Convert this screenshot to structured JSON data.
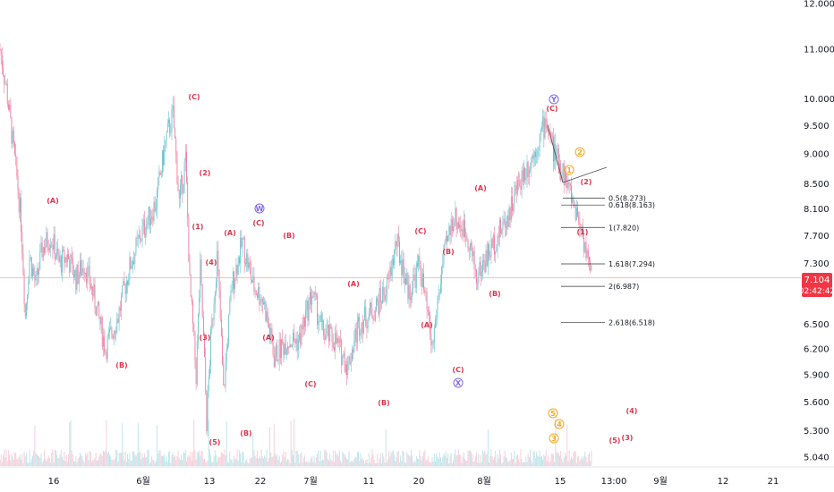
{
  "chart_data": {
    "type": "candlestick",
    "x_axis": {
      "labels": [
        "16",
        "6월",
        "13",
        "22",
        "7월",
        "11",
        "20",
        "8월",
        "15",
        "13:00",
        "9월",
        "12",
        "21"
      ]
    },
    "y_axis": {
      "ticks": [
        "12.000",
        "11.000",
        "10.000",
        "9.500",
        "9.000",
        "8.500",
        "8.100",
        "7.700",
        "7.300",
        "6.500",
        "6.200",
        "5.900",
        "5.600",
        "5.300",
        "5.040"
      ],
      "tick_values": [
        12.0,
        11.0,
        10.0,
        9.5,
        9.0,
        8.5,
        8.1,
        7.7,
        7.3,
        6.5,
        6.2,
        5.9,
        5.6,
        5.3,
        5.04
      ],
      "scale": "log"
    },
    "current_price": {
      "value": "7.104",
      "countdown": "02:42:42",
      "color": "#f23645"
    },
    "colors": {
      "up": "#6fc3cf",
      "down": "#f07fa0",
      "wave_red": "#e5334b",
      "wave_orange": "#f5a623",
      "wave_purple": "#7b68ee"
    },
    "price_series": [
      {
        "d": 0,
        "v": 11.0
      },
      {
        "d": 6,
        "v": 10.2
      },
      {
        "d": 12,
        "v": 9.2
      },
      {
        "d": 16,
        "v": 8.6
      },
      {
        "d": 20,
        "v": 7.9
      },
      {
        "d": 24,
        "v": 6.6
      },
      {
        "d": 28,
        "v": 7.4
      },
      {
        "d": 34,
        "v": 7.0
      },
      {
        "d": 40,
        "v": 7.5
      },
      {
        "d": 48,
        "v": 7.7
      },
      {
        "d": 56,
        "v": 7.3
      },
      {
        "d": 64,
        "v": 7.4
      },
      {
        "d": 72,
        "v": 7.1
      },
      {
        "d": 80,
        "v": 7.3
      },
      {
        "d": 90,
        "v": 6.8
      },
      {
        "d": 100,
        "v": 6.2
      },
      {
        "d": 112,
        "v": 6.6
      },
      {
        "d": 124,
        "v": 7.3
      },
      {
        "d": 136,
        "v": 7.8
      },
      {
        "d": 148,
        "v": 8.2
      },
      {
        "d": 158,
        "v": 9.3
      },
      {
        "d": 164,
        "v": 9.7
      },
      {
        "d": 170,
        "v": 8.2
      },
      {
        "d": 176,
        "v": 8.9
      },
      {
        "d": 180,
        "v": 7.0
      },
      {
        "d": 186,
        "v": 5.9
      },
      {
        "d": 190,
        "v": 7.2
      },
      {
        "d": 196,
        "v": 5.4
      },
      {
        "d": 200,
        "v": 6.3
      },
      {
        "d": 206,
        "v": 7.4
      },
      {
        "d": 212,
        "v": 5.7
      },
      {
        "d": 220,
        "v": 7.0
      },
      {
        "d": 230,
        "v": 7.6
      },
      {
        "d": 240,
        "v": 7.0
      },
      {
        "d": 250,
        "v": 6.8
      },
      {
        "d": 260,
        "v": 6.1
      },
      {
        "d": 272,
        "v": 6.3
      },
      {
        "d": 284,
        "v": 6.3
      },
      {
        "d": 296,
        "v": 6.9
      },
      {
        "d": 306,
        "v": 6.4
      },
      {
        "d": 318,
        "v": 6.3
      },
      {
        "d": 330,
        "v": 6.0
      },
      {
        "d": 340,
        "v": 6.5
      },
      {
        "d": 356,
        "v": 6.7
      },
      {
        "d": 368,
        "v": 7.0
      },
      {
        "d": 376,
        "v": 7.6
      },
      {
        "d": 388,
        "v": 6.9
      },
      {
        "d": 398,
        "v": 7.3
      },
      {
        "d": 410,
        "v": 6.2
      },
      {
        "d": 420,
        "v": 7.3
      },
      {
        "d": 430,
        "v": 8.0
      },
      {
        "d": 444,
        "v": 7.7
      },
      {
        "d": 452,
        "v": 7.1
      },
      {
        "d": 462,
        "v": 7.4
      },
      {
        "d": 472,
        "v": 7.7
      },
      {
        "d": 482,
        "v": 8.0
      },
      {
        "d": 494,
        "v": 8.6
      },
      {
        "d": 504,
        "v": 8.9
      },
      {
        "d": 512,
        "v": 9.3
      },
      {
        "d": 518,
        "v": 9.6
      },
      {
        "d": 526,
        "v": 9.0
      },
      {
        "d": 534,
        "v": 8.7
      },
      {
        "d": 540,
        "v": 8.4
      },
      {
        "d": 546,
        "v": 8.1
      },
      {
        "d": 552,
        "v": 7.8
      },
      {
        "d": 558,
        "v": 7.3
      },
      {
        "d": 561,
        "v": 7.104
      }
    ],
    "fib_levels": [
      {
        "ratio_label": "0.5(8.273)",
        "value": 8.273
      },
      {
        "ratio_label": "0.618(8.163)",
        "value": 8.163
      },
      {
        "ratio_label": "1(7.820)",
        "value": 7.82
      },
      {
        "ratio_label": "1.618(7.294)",
        "value": 7.294
      },
      {
        "ratio_label": "2(6.987)",
        "value": 6.987
      },
      {
        "ratio_label": "2.618(6.518)",
        "value": 6.518
      }
    ],
    "wave_labels": [
      {
        "text": "(A)",
        "color": "red"
      },
      {
        "text": "(B)",
        "color": "red"
      },
      {
        "text": "(C)",
        "color": "red"
      },
      {
        "text": "(2)",
        "color": "red"
      },
      {
        "text": "(1)",
        "color": "red"
      },
      {
        "text": "(4)",
        "color": "red"
      },
      {
        "text": "(3)",
        "color": "red"
      },
      {
        "text": "(5)",
        "color": "red"
      },
      {
        "text": "(A)",
        "color": "red"
      },
      {
        "text": "(B)",
        "color": "red"
      },
      {
        "text": "W",
        "color": "purple"
      },
      {
        "text": "(C)",
        "color": "red"
      },
      {
        "text": "(A)",
        "color": "red"
      },
      {
        "text": "(B)",
        "color": "red"
      },
      {
        "text": "(A)",
        "color": "red"
      },
      {
        "text": "(C)",
        "color": "red"
      },
      {
        "text": "(B)",
        "color": "red"
      },
      {
        "text": "(C)",
        "color": "red"
      },
      {
        "text": "(A)",
        "color": "red"
      },
      {
        "text": "(B)",
        "color": "red"
      },
      {
        "text": "(C)",
        "color": "red"
      },
      {
        "text": "X",
        "color": "purple"
      },
      {
        "text": "(A)",
        "color": "red"
      },
      {
        "text": "(B)",
        "color": "red"
      },
      {
        "text": "Y",
        "color": "purple"
      },
      {
        "text": "(C)",
        "color": "red"
      },
      {
        "text": "2",
        "color": "orange"
      },
      {
        "text": "1",
        "color": "orange"
      },
      {
        "text": "(2)",
        "color": "red"
      },
      {
        "text": "(1)",
        "color": "red"
      },
      {
        "text": "5",
        "color": "orange"
      },
      {
        "text": "4",
        "color": "orange"
      },
      {
        "text": "3",
        "color": "orange"
      },
      {
        "text": "(4)",
        "color": "red"
      },
      {
        "text": "(5)",
        "color": "red"
      },
      {
        "text": "(3)",
        "color": "red"
      }
    ]
  }
}
